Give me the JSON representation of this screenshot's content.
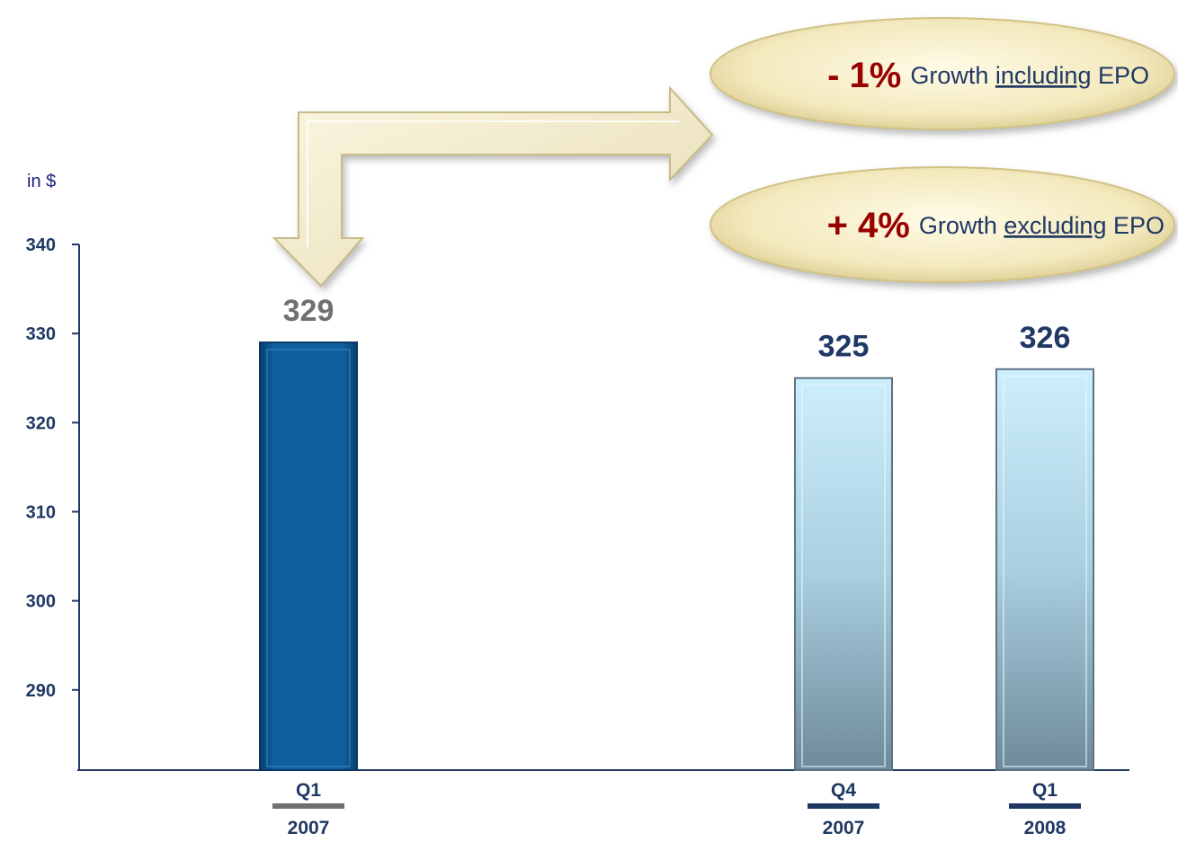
{
  "chart_data": {
    "type": "bar",
    "unit_label": "in $",
    "ylim": [
      281,
      340
    ],
    "yticks": [
      340,
      330,
      320,
      310,
      300,
      290
    ],
    "grid": false,
    "bars": [
      {
        "quarter": "Q1",
        "year": "2007",
        "value": 329,
        "label": "329",
        "color": "#0d5b9c",
        "label_color": "#707070",
        "underline_color": "#707070"
      },
      {
        "quarter": "Q4",
        "year": "2007",
        "value": 325,
        "label": "325",
        "color": "#a9d8ee",
        "label_color": "#1f3864",
        "underline_color": "#1f3864"
      },
      {
        "quarter": "Q1",
        "year": "2008",
        "value": 326,
        "label": "326",
        "color": "#a9d8ee",
        "label_color": "#1f3864",
        "underline_color": "#1f3864"
      }
    ]
  },
  "callouts": [
    {
      "pct": "- 1%",
      "pre": "Growth ",
      "key": "including",
      "post": " EPO"
    },
    {
      "pct": "+ 4%",
      "pre": "Growth ",
      "key": "excluding",
      "post": " EPO"
    }
  ],
  "colors": {
    "axis": "#1f3864",
    "callout_fill": "#f5edc4",
    "arrow_fill": "#f4eccb",
    "pct_text": "#990000"
  }
}
